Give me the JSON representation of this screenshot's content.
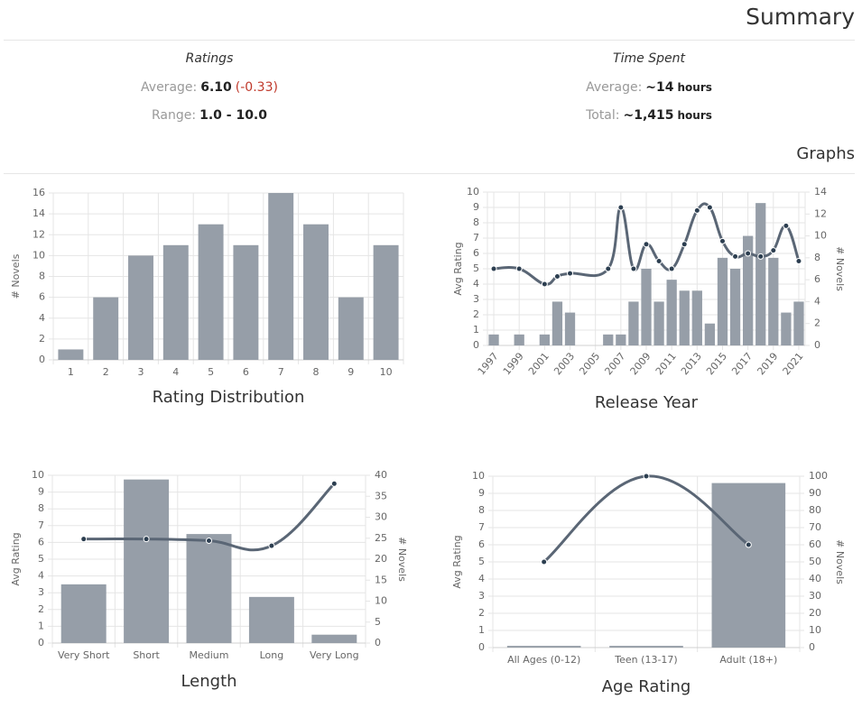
{
  "header": {
    "title": "Summary"
  },
  "ratings": {
    "heading": "Ratings",
    "average_label": "Average:",
    "average": "6.10",
    "change": "(-0.33)",
    "range_label": "Range:",
    "range": "1.0 - 10.0"
  },
  "time_spent": {
    "heading": "Time Spent",
    "average_label": "Average:",
    "average": "~14",
    "average_unit": "hours",
    "total_label": "Total:",
    "total": "~1,415",
    "total_unit": "hours"
  },
  "graphs_heading": "Graphs",
  "chart_data": [
    {
      "type": "bar",
      "title": "Rating Distribution",
      "ylabel": "# Novels",
      "categories": [
        "1",
        "2",
        "3",
        "4",
        "5",
        "6",
        "7",
        "8",
        "9",
        "10"
      ],
      "values": [
        1,
        6,
        10,
        11,
        13,
        11,
        16,
        13,
        6,
        11
      ],
      "color": "#969ea8",
      "ylim": [
        0,
        16
      ],
      "yticks": [
        0,
        2,
        4,
        6,
        8,
        10,
        12,
        14,
        16
      ],
      "grid": true
    },
    {
      "type": "combo",
      "title": "Release Year",
      "ylabel": "Avg Rating",
      "y2label": "# Novels",
      "x": [
        1997,
        1999,
        2001,
        2002,
        2003,
        2006,
        2007,
        2008,
        2009,
        2010,
        2011,
        2012,
        2013,
        2014,
        2015,
        2016,
        2017,
        2018,
        2019,
        2020,
        2021
      ],
      "xlim": [
        1996.5,
        2021.5
      ],
      "xticks": [
        1997,
        1999,
        2001,
        2003,
        2005,
        2007,
        2009,
        2011,
        2013,
        2015,
        2017,
        2019,
        2021
      ],
      "series": [
        {
          "type": "bar",
          "axis": "y2",
          "color": "#969ea8",
          "values": [
            1,
            1,
            1,
            4,
            3,
            1,
            1,
            4,
            7,
            4,
            6,
            5,
            5,
            2,
            8,
            7,
            10,
            13,
            8,
            3,
            4
          ]
        },
        {
          "type": "line",
          "axis": "y",
          "color": "#5a6675",
          "point_color": "#2c3e50",
          "values": [
            5,
            5,
            4,
            4.5,
            4.7,
            5,
            9,
            5,
            6.6,
            5.5,
            5,
            6.6,
            8.8,
            9,
            6.8,
            5.8,
            6,
            5.8,
            6.2,
            7.8,
            5.5
          ]
        }
      ],
      "ylim": [
        0,
        10
      ],
      "yticks": [
        0,
        1,
        2,
        3,
        4,
        5,
        6,
        7,
        8,
        9,
        10
      ],
      "y2lim": [
        0,
        14
      ],
      "y2ticks": [
        0,
        2,
        4,
        6,
        8,
        10,
        12,
        14
      ],
      "grid": true
    },
    {
      "type": "combo",
      "title": "Length",
      "ylabel": "Avg Rating",
      "y2label": "# Novels",
      "categories": [
        "Very Short",
        "Short",
        "Medium",
        "Long",
        "Very Long"
      ],
      "series": [
        {
          "type": "bar",
          "axis": "y2",
          "color": "#969ea8",
          "values": [
            14,
            39,
            26,
            11,
            2
          ]
        },
        {
          "type": "line",
          "axis": "y",
          "color": "#5a6675",
          "point_color": "#2c3e50",
          "values": [
            6.2,
            6.2,
            6.1,
            5.8,
            9.5
          ]
        }
      ],
      "ylim": [
        0,
        10
      ],
      "yticks": [
        0,
        1,
        2,
        3,
        4,
        5,
        6,
        7,
        8,
        9,
        10
      ],
      "y2lim": [
        0,
        40
      ],
      "y2ticks": [
        0,
        5,
        10,
        15,
        20,
        25,
        30,
        35,
        40
      ],
      "grid": true
    },
    {
      "type": "combo",
      "title": "Age Rating",
      "ylabel": "Avg Rating",
      "y2label": "# Novels",
      "categories": [
        "All Ages (0-12)",
        "Teen (13-17)",
        "Adult (18+)"
      ],
      "series": [
        {
          "type": "bar",
          "axis": "y2",
          "color": "#969ea8",
          "values": [
            1,
            1,
            96
          ]
        },
        {
          "type": "line",
          "axis": "y",
          "color": "#5a6675",
          "point_color": "#2c3e50",
          "values": [
            5,
            10,
            6
          ]
        }
      ],
      "ylim": [
        0,
        10
      ],
      "yticks": [
        0,
        1,
        2,
        3,
        4,
        5,
        6,
        7,
        8,
        9,
        10
      ],
      "y2lim": [
        0,
        100
      ],
      "y2ticks": [
        0,
        10,
        20,
        30,
        40,
        50,
        60,
        70,
        80,
        90,
        100
      ],
      "grid": true
    }
  ]
}
